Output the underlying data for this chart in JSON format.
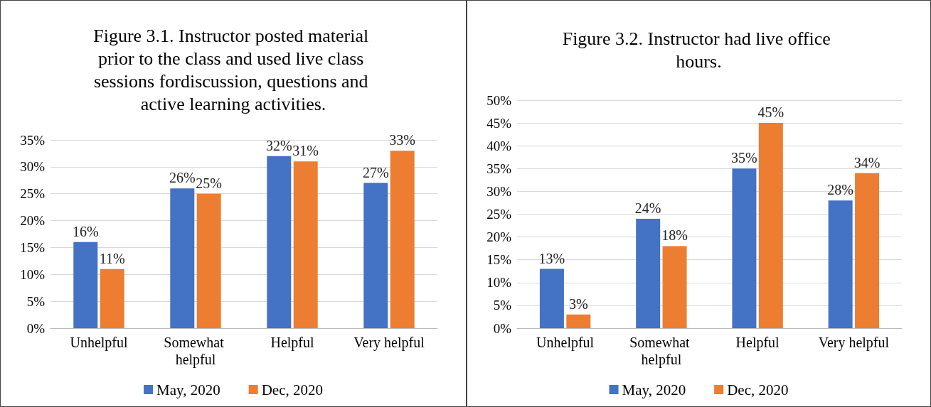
{
  "chart_data": [
    {
      "type": "bar",
      "title": "Figure 3.1. Instructor posted material prior to the class and used live class sessions fordiscussion, questions and active learning activities.",
      "categories": [
        "Unhelpful",
        "Somewhat helpful",
        "Helpful",
        "Very helpful"
      ],
      "series": [
        {
          "name": "May, 2020",
          "color": "#4472c4",
          "values": [
            16,
            26,
            32,
            27
          ],
          "value_labels": [
            "16%",
            "26%",
            "32%",
            "27%"
          ]
        },
        {
          "name": "Dec, 2020",
          "color": "#ed7d31",
          "values": [
            11,
            25,
            31,
            33
          ],
          "value_labels": [
            "11%",
            "25%",
            "31%",
            "33%"
          ]
        }
      ],
      "ylim": [
        0,
        35
      ],
      "yticks": [
        {
          "value": 0,
          "label": "0%"
        },
        {
          "value": 5,
          "label": "5%"
        },
        {
          "value": 10,
          "label": "10%"
        },
        {
          "value": 15,
          "label": "15%"
        },
        {
          "value": 20,
          "label": "20%"
        },
        {
          "value": 25,
          "label": "25%"
        },
        {
          "value": 30,
          "label": "30%"
        },
        {
          "value": 35,
          "label": "35%"
        }
      ],
      "grid": "y",
      "legend": "bottom"
    },
    {
      "type": "bar",
      "title": "Figure 3.2. Instructor had live office hours.",
      "categories": [
        "Unhelpful",
        "Somewhat helpful",
        "Helpful",
        "Very helpful"
      ],
      "series": [
        {
          "name": "May, 2020",
          "color": "#4472c4",
          "values": [
            13,
            24,
            35,
            28
          ],
          "value_labels": [
            "13%",
            "24%",
            "35%",
            "28%"
          ]
        },
        {
          "name": "Dec, 2020",
          "color": "#ed7d31",
          "values": [
            3,
            18,
            45,
            34
          ],
          "value_labels": [
            "3%",
            "18%",
            "45%",
            "34%"
          ]
        }
      ],
      "ylim": [
        0,
        50
      ],
      "yticks": [
        {
          "value": 0,
          "label": "0%"
        },
        {
          "value": 5,
          "label": "5%"
        },
        {
          "value": 10,
          "label": "10%"
        },
        {
          "value": 15,
          "label": "15%"
        },
        {
          "value": 20,
          "label": "20%"
        },
        {
          "value": 25,
          "label": "25%"
        },
        {
          "value": 30,
          "label": "30%"
        },
        {
          "value": 35,
          "label": "35%"
        },
        {
          "value": 40,
          "label": "40%"
        },
        {
          "value": 45,
          "label": "45%"
        },
        {
          "value": 50,
          "label": "50%"
        }
      ],
      "grid": "y",
      "legend": "bottom"
    }
  ]
}
